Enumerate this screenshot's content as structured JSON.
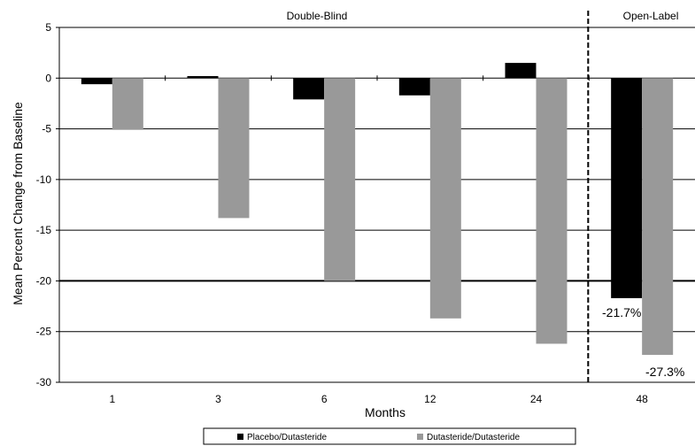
{
  "chart_data": {
    "type": "bar",
    "title": "",
    "xlabel": "Months",
    "ylabel": "Mean Percent Change from Baseline",
    "categories": [
      "1",
      "3",
      "6",
      "12",
      "24",
      "48"
    ],
    "series": [
      {
        "name": "Placebo/Dutasteride",
        "color": "#000000",
        "values": [
          -0.6,
          0.2,
          -2.1,
          -1.7,
          1.5,
          -21.7
        ]
      },
      {
        "name": "Dutasteride/Dutasteride",
        "color": "#999999",
        "values": [
          -5.1,
          -13.8,
          -20.0,
          -23.7,
          -26.2,
          -27.3
        ]
      }
    ],
    "ylim": [
      -30,
      5
    ],
    "yticks": [
      5,
      0,
      -5,
      -10,
      -15,
      -20,
      -25,
      -30
    ],
    "grid": true,
    "sections": [
      {
        "label": "Double-Blind"
      },
      {
        "label": "Open-Label"
      }
    ],
    "annotations": [
      {
        "text": "-21.7%"
      },
      {
        "text": "-27.3%"
      }
    ],
    "legend_position": "bottom"
  }
}
